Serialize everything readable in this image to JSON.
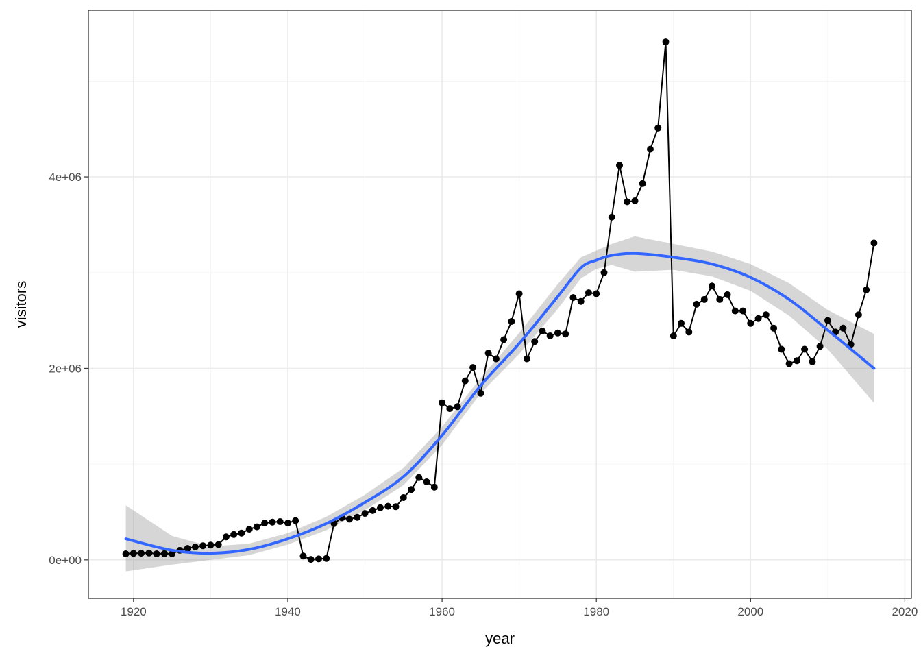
{
  "chart_data": {
    "type": "line",
    "title": "",
    "xlabel": "year",
    "ylabel": "visitors",
    "xlim": [
      1914.15,
      2020.85
    ],
    "ylim": [
      -402000,
      5740000
    ],
    "x_ticks": [
      1920,
      1940,
      1960,
      1980,
      2000,
      2020
    ],
    "x_tick_labels": [
      "1920",
      "1940",
      "1960",
      "1980",
      "2000",
      "2020"
    ],
    "y_ticks": [
      0,
      2000000,
      4000000
    ],
    "y_tick_labels": [
      "0e+00",
      "2e+06",
      "4e+06"
    ],
    "grid": true,
    "theme": "bw",
    "series": [
      {
        "kind": "line+points",
        "color": "#000000",
        "x": [
          1919,
          1920,
          1921,
          1922,
          1923,
          1924,
          1925,
          1926,
          1927,
          1928,
          1929,
          1930,
          1931,
          1932,
          1933,
          1934,
          1935,
          1936,
          1937,
          1938,
          1939,
          1940,
          1941,
          1942,
          1943,
          1944,
          1945,
          1946,
          1947,
          1948,
          1949,
          1950,
          1951,
          1952,
          1953,
          1954,
          1955,
          1956,
          1957,
          1958,
          1959,
          1960,
          1961,
          1962,
          1963,
          1964,
          1965,
          1966,
          1967,
          1968,
          1969,
          1970,
          1971,
          1972,
          1973,
          1974,
          1975,
          1976,
          1977,
          1978,
          1979,
          1980,
          1981,
          1982,
          1983,
          1984,
          1985,
          1986,
          1987,
          1988,
          1989,
          1990,
          1991,
          1992,
          1993,
          1994,
          1995,
          1996,
          1997,
          1998,
          1999,
          2000,
          2001,
          2002,
          2003,
          2004,
          2005,
          2006,
          2007,
          2008,
          2009,
          2010,
          2011,
          2012,
          2013,
          2014,
          2015,
          2016
        ],
        "y": [
          63000,
          68000,
          70000,
          72000,
          63000,
          65000,
          64000,
          100000,
          120000,
          135000,
          148000,
          155000,
          160000,
          240000,
          265000,
          280000,
          320000,
          345000,
          385000,
          395000,
          400000,
          385000,
          410000,
          40000,
          5000,
          10000,
          15000,
          380000,
          440000,
          425000,
          445000,
          485000,
          515000,
          545000,
          560000,
          555000,
          650000,
          735000,
          860000,
          815000,
          760000,
          1640000,
          1580000,
          1600000,
          1870000,
          2010000,
          1740000,
          2160000,
          2100000,
          2300000,
          2490000,
          2780000,
          2100000,
          2280000,
          2390000,
          2340000,
          2370000,
          2360000,
          2740000,
          2700000,
          2790000,
          2780000,
          3000000,
          3580000,
          4120000,
          3740000,
          3750000,
          3930000,
          4290000,
          4510000,
          5410000,
          2340000,
          2470000,
          2380000,
          2670000,
          2720000,
          2860000,
          2720000,
          2770000,
          2600000,
          2600000,
          2470000,
          2520000,
          2560000,
          2420000,
          2200000,
          2050000,
          2080000,
          2200000,
          2070000,
          2230000,
          2500000,
          2380000,
          2420000,
          2250000,
          2560000,
          2820000,
          3310000
        ]
      },
      {
        "kind": "smooth",
        "color": "#3366ff",
        "band_color": "#999999",
        "x": [
          1919,
          1925,
          1930,
          1935,
          1940,
          1945,
          1950,
          1955,
          1960,
          1965,
          1970,
          1975,
          1978,
          1980,
          1982,
          1985,
          1990,
          1995,
          2000,
          2005,
          2010,
          2016
        ],
        "y": [
          220000,
          100000,
          70000,
          110000,
          220000,
          380000,
          600000,
          870000,
          1300000,
          1820000,
          2260000,
          2750000,
          3050000,
          3130000,
          3180000,
          3200000,
          3160000,
          3090000,
          2950000,
          2720000,
          2400000,
          2000000
        ],
        "ymin": [
          -120000,
          -50000,
          0,
          50000,
          160000,
          310000,
          520000,
          780000,
          1200000,
          1740000,
          2150000,
          2620000,
          2940000,
          3040000,
          3080000,
          3010000,
          3030000,
          2960000,
          2810000,
          2550000,
          2200000,
          1640000
        ],
        "ymax": [
          570000,
          250000,
          140000,
          170000,
          280000,
          450000,
          680000,
          960000,
          1390000,
          1900000,
          2370000,
          2880000,
          3160000,
          3230000,
          3300000,
          3380000,
          3300000,
          3220000,
          3090000,
          2890000,
          2610000,
          2360000
        ]
      }
    ]
  }
}
